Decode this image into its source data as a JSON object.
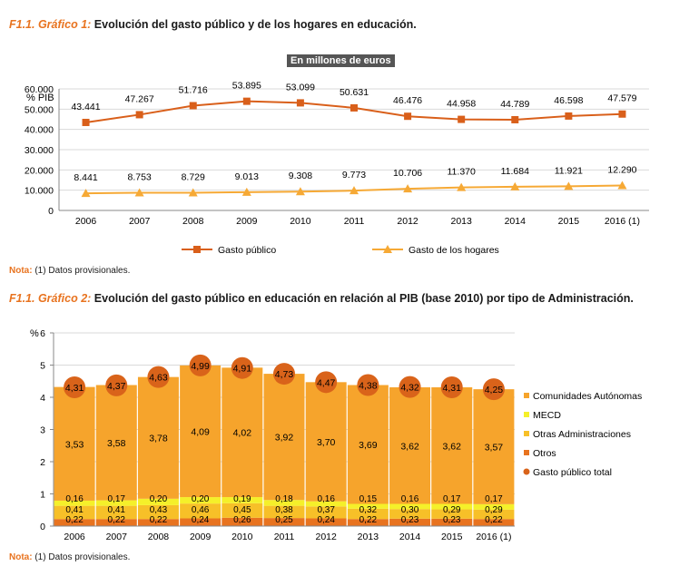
{
  "chart1": {
    "prefix": "F1.1. Gráfico 1:",
    "title": "Evolución del gasto público y de los hogares en educación.",
    "units": "En millones de euros",
    "ylabel": "% PIB",
    "note_label": "Nota:",
    "note_text": "(1) Datos provisionales."
  },
  "chart2": {
    "prefix": "F1.1. Gráfico 2:",
    "title": "Evolución del gasto público en educación en relación al PIB (base 2010) por tipo de Administración.",
    "note_label": "Nota:",
    "note_text": "(1) Datos provisionales."
  },
  "chart_data": [
    {
      "type": "line",
      "categories": [
        "2006",
        "2007",
        "2008",
        "2009",
        "2010",
        "2011",
        "2012",
        "2013",
        "2014",
        "2015",
        "2016 (1)"
      ],
      "ylim": [
        0,
        60000
      ],
      "yticks": [
        "0",
        "10.000",
        "20.000",
        "30.000",
        "40.000",
        "50.000",
        "60.000"
      ],
      "ylabel": "% PIB",
      "series": [
        {
          "name": "Gasto público",
          "color": "#d95f1a",
          "marker": "square",
          "values": [
            43441,
            47267,
            51716,
            53895,
            53099,
            50631,
            46476,
            44958,
            44789,
            46598,
            47579
          ],
          "labels": [
            "43.441",
            "47.267",
            "51.716",
            "53.895",
            "53.099",
            "50.631",
            "46.476",
            "44.958",
            "44.789",
            "46.598",
            "47.579"
          ]
        },
        {
          "name": "Gasto de los hogares",
          "color": "#f6a935",
          "marker": "triangle",
          "values": [
            8441,
            8753,
            8729,
            9013,
            9308,
            9773,
            10706,
            11370,
            11684,
            11921,
            12290
          ],
          "labels": [
            "8.441",
            "8.753",
            "8.729",
            "9.013",
            "9.308",
            "9.773",
            "10.706",
            "11.370",
            "11.684",
            "11.921",
            "12.290"
          ]
        }
      ],
      "grid": true,
      "legend": "bottom"
    },
    {
      "type": "bar",
      "stacked": true,
      "categories": [
        "2006",
        "2007",
        "2008",
        "2009",
        "2010",
        "2011",
        "2012",
        "2013",
        "2014",
        "2015",
        "2016 (1)"
      ],
      "ylim": [
        0,
        6
      ],
      "yticks": [
        "0",
        "1",
        "2",
        "3",
        "4",
        "5",
        "6"
      ],
      "ylabel": "%",
      "series": [
        {
          "name": "Otros",
          "color": "#e8731f",
          "values": [
            0.22,
            0.22,
            0.22,
            0.24,
            0.26,
            0.25,
            0.24,
            0.22,
            0.23,
            0.23,
            0.22
          ],
          "labels": [
            "0,22",
            "0,22",
            "0,22",
            "0,24",
            "0,26",
            "0,25",
            "0,24",
            "0,22",
            "0,23",
            "0,23",
            "0,22"
          ]
        },
        {
          "name": "Otras Administraciones",
          "color": "#f7c028",
          "values": [
            0.41,
            0.41,
            0.43,
            0.46,
            0.45,
            0.38,
            0.37,
            0.32,
            0.3,
            0.29,
            0.29
          ],
          "labels": [
            "0,41",
            "0,41",
            "0,43",
            "0,46",
            "0,45",
            "0,38",
            "0,37",
            "0,32",
            "0,30",
            "0,29",
            "0,29"
          ]
        },
        {
          "name": "MECD",
          "color": "#f5f02a",
          "values": [
            0.16,
            0.17,
            0.2,
            0.2,
            0.19,
            0.18,
            0.16,
            0.15,
            0.16,
            0.17,
            0.17
          ],
          "labels": [
            "0,16",
            "0,17",
            "0,20",
            "0,20",
            "0,19",
            "0,18",
            "0,16",
            "0,15",
            "0,16",
            "0,17",
            "0,17"
          ]
        },
        {
          "name": "Comunidades Autónomas",
          "color": "#f6a42c",
          "values": [
            3.53,
            3.58,
            3.78,
            4.09,
            4.02,
            3.92,
            3.7,
            3.69,
            3.62,
            3.62,
            3.57
          ],
          "labels": [
            "3,53",
            "3,58",
            "3,78",
            "4,09",
            "4,02",
            "3,92",
            "3,70",
            "3,69",
            "3,62",
            "3,62",
            "3,57"
          ]
        }
      ],
      "total": {
        "name": "Gasto público total",
        "color": "#d9631a",
        "values": [
          4.31,
          4.37,
          4.63,
          4.99,
          4.91,
          4.73,
          4.47,
          4.38,
          4.32,
          4.31,
          4.25
        ],
        "labels": [
          "4,31",
          "4,37",
          "4,63",
          "4,99",
          "4,91",
          "4,73",
          "4,47",
          "4,38",
          "4,32",
          "4,31",
          "4,25"
        ]
      },
      "legend_order": [
        "Comunidades Autónomas",
        "MECD",
        "Otras Administraciones",
        "Otros",
        "Gasto público total"
      ],
      "grid": true,
      "legend": "right"
    }
  ]
}
